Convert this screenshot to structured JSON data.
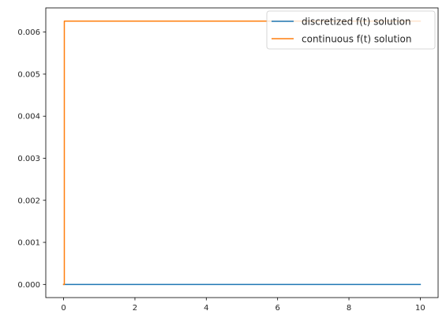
{
  "chart_data": {
    "type": "line",
    "title": "",
    "xlabel": "",
    "ylabel": "",
    "xlim": [
      -0.5,
      10.5
    ],
    "ylim": [
      -0.000313,
      0.006575
    ],
    "x_ticks": [
      0,
      2,
      4,
      6,
      8,
      10
    ],
    "x_tick_labels": [
      "0",
      "2",
      "4",
      "6",
      "8",
      "10"
    ],
    "y_ticks": [
      0,
      0.001,
      0.002,
      0.003,
      0.004,
      0.005,
      0.006
    ],
    "y_tick_labels": [
      "0.000",
      "0.001",
      "0.002",
      "0.003",
      "0.004",
      "0.005",
      "0.006"
    ],
    "grid": false,
    "legend_position": "upper right",
    "series": [
      {
        "name": "discretized f(t) solution",
        "color": "#1f77b4",
        "x": [
          0,
          10
        ],
        "y": [
          0,
          0
        ]
      },
      {
        "name": "continuous f(t) solution",
        "color": "#ff7f0e",
        "x": [
          0,
          0.02,
          0.02,
          10
        ],
        "y": [
          0,
          0,
          0.00626,
          0.00626
        ]
      }
    ]
  }
}
